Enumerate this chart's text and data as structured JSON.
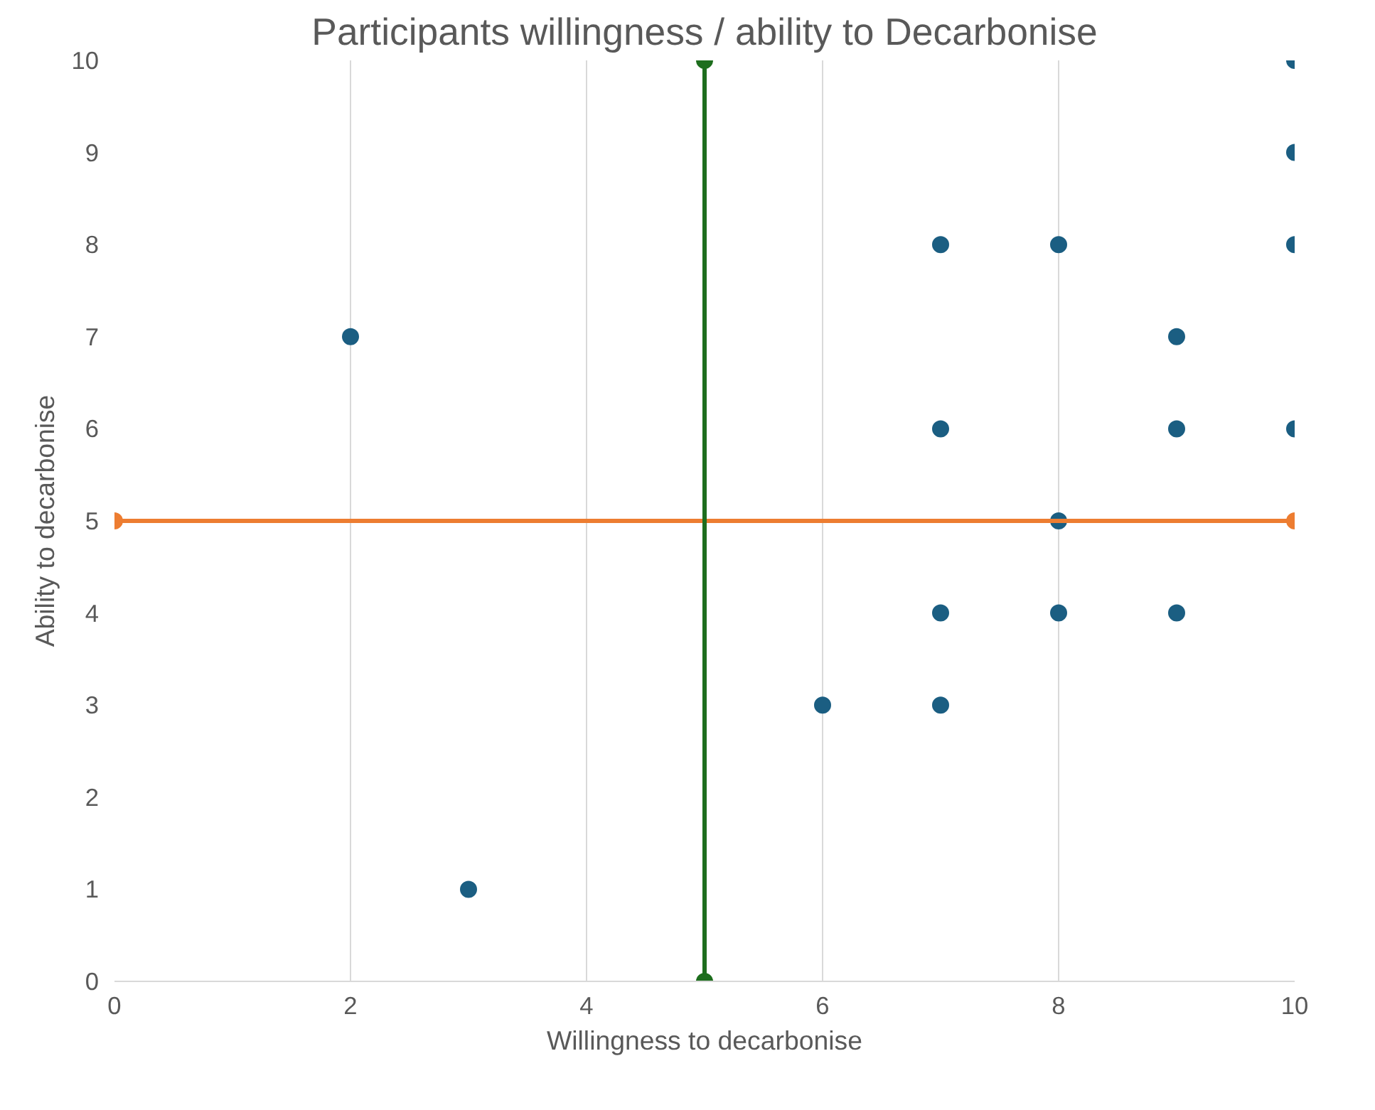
{
  "chart_data": {
    "type": "scatter",
    "title": "Participants willingness / ability to Decarbonise",
    "xlabel": "Willingness to decarbonise",
    "ylabel": "Ability to decarbonise",
    "xlim": [
      0,
      10
    ],
    "ylim": [
      0,
      10
    ],
    "xticks": [
      0,
      2,
      4,
      6,
      8,
      10
    ],
    "yticks": [
      0,
      1,
      2,
      3,
      4,
      5,
      6,
      7,
      8,
      9,
      10
    ],
    "grid": "x",
    "marker": "circle",
    "series": [
      {
        "color": "#1b5e82",
        "x": [
          2,
          3,
          6,
          7,
          7,
          7,
          7,
          8,
          8,
          8,
          9,
          9,
          9,
          10,
          10,
          10,
          10
        ],
        "values": [
          7,
          1,
          3,
          8,
          6,
          4,
          3,
          8,
          5,
          4,
          7,
          6,
          4,
          10,
          9,
          8,
          6
        ]
      },
      {
        "type": "line",
        "color": "#ed7d31",
        "x": [
          0,
          10
        ],
        "values": [
          5,
          5
        ]
      },
      {
        "type": "line",
        "color": "#1e6e1e",
        "x": [
          5,
          5
        ],
        "values": [
          0,
          10
        ]
      }
    ]
  }
}
